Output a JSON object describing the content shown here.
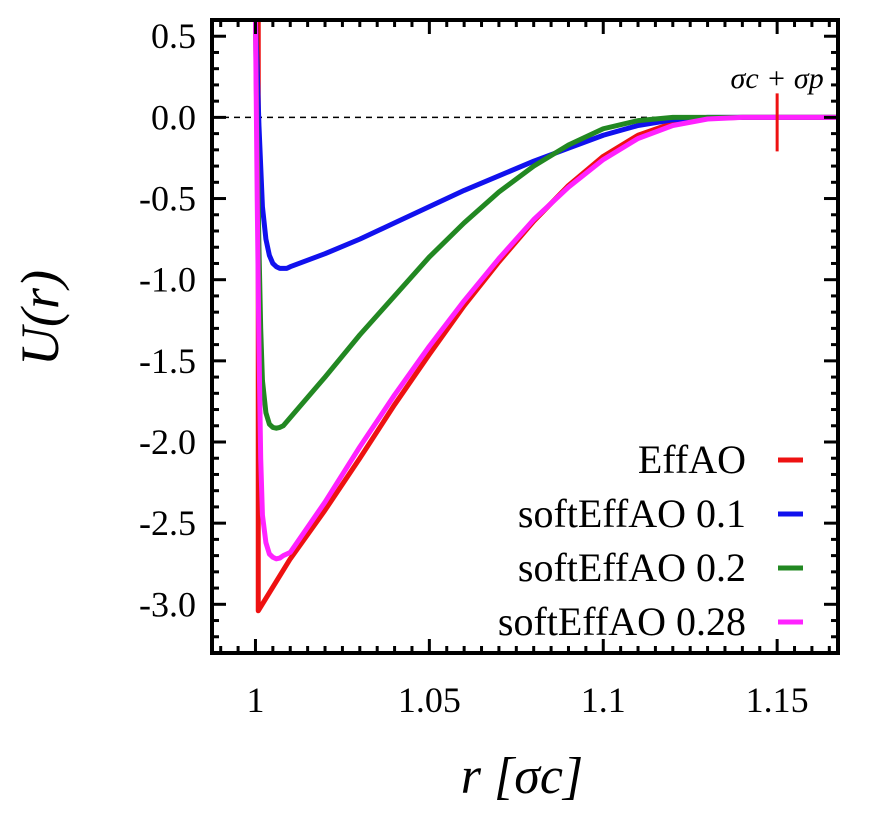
{
  "chart_data": {
    "type": "line",
    "title": "",
    "xlabel": "r [σc]",
    "ylabel": "U(r)",
    "xlim": [
      0.9875,
      1.1675
    ],
    "ylim": [
      -3.3,
      0.6
    ],
    "xticks": [
      {
        "value": 1.0,
        "label": "1"
      },
      {
        "value": 1.05,
        "label": "1.05"
      },
      {
        "value": 1.1,
        "label": "1.1"
      },
      {
        "value": 1.15,
        "label": "1.15"
      }
    ],
    "yticks": [
      {
        "value": 0.5,
        "label": "0.5"
      },
      {
        "value": 0.0,
        "label": "0.0"
      },
      {
        "value": -0.5,
        "label": "-0.5"
      },
      {
        "value": -1.0,
        "label": "-1.0"
      },
      {
        "value": -1.5,
        "label": "-1.5"
      },
      {
        "value": -2.0,
        "label": "-2.0"
      },
      {
        "value": -2.5,
        "label": "-2.5"
      },
      {
        "value": -3.0,
        "label": "-3.0"
      }
    ],
    "legend_position": "bottom-right",
    "annotations": [
      {
        "text": "σc + σp",
        "x": 1.15,
        "y": 0.0
      }
    ],
    "reference_line": {
      "y": 0.0,
      "style": "dashed"
    },
    "series": [
      {
        "name": "EffAO",
        "color": "#ee1111",
        "x": [
          0.9995,
          1.0008,
          1.0008,
          1.01,
          1.02,
          1.03,
          1.04,
          1.05,
          1.06,
          1.07,
          1.08,
          1.09,
          1.1,
          1.11,
          1.12,
          1.13,
          1.14,
          1.15,
          1.1675
        ],
        "y": [
          0.6,
          0.6,
          -3.04,
          -2.72,
          -2.42,
          -2.1,
          -1.77,
          -1.46,
          -1.16,
          -0.89,
          -0.64,
          -0.42,
          -0.24,
          -0.11,
          -0.035,
          -0.005,
          0.0,
          0.0,
          0.0
        ]
      },
      {
        "name": "softEffAO 0.1",
        "color": "#1111ee",
        "x": [
          1.0,
          1.0005,
          1.001,
          1.0015,
          1.002,
          1.003,
          1.004,
          1.005,
          1.006,
          1.007,
          1.008,
          1.009,
          1.01,
          1.02,
          1.03,
          1.04,
          1.05,
          1.06,
          1.07,
          1.08,
          1.09,
          1.1,
          1.11,
          1.12,
          1.13,
          1.14,
          1.15,
          1.1675
        ],
        "y": [
          0.6,
          0.3,
          -0.05,
          -0.3,
          -0.55,
          -0.75,
          -0.85,
          -0.9,
          -0.92,
          -0.93,
          -0.93,
          -0.93,
          -0.92,
          -0.84,
          -0.75,
          -0.65,
          -0.55,
          -0.45,
          -0.36,
          -0.27,
          -0.19,
          -0.11,
          -0.05,
          -0.015,
          0.0,
          0.0,
          0.0,
          0.0
        ]
      },
      {
        "name": "softEffAO 0.2",
        "color": "#228822",
        "x": [
          1.0,
          1.0005,
          1.001,
          1.0015,
          1.002,
          1.003,
          1.004,
          1.005,
          1.006,
          1.007,
          1.008,
          1.01,
          1.02,
          1.03,
          1.04,
          1.05,
          1.06,
          1.07,
          1.08,
          1.09,
          1.1,
          1.11,
          1.12,
          1.13,
          1.14,
          1.15,
          1.1675
        ],
        "y": [
          0.6,
          -0.2,
          -0.8,
          -1.3,
          -1.62,
          -1.82,
          -1.89,
          -1.91,
          -1.915,
          -1.91,
          -1.9,
          -1.85,
          -1.6,
          -1.34,
          -1.1,
          -0.86,
          -0.65,
          -0.46,
          -0.3,
          -0.17,
          -0.07,
          -0.02,
          0.0,
          0.0,
          0.0,
          0.0,
          0.0
        ]
      },
      {
        "name": "softEffAO 0.28",
        "color": "#ff22ff",
        "x": [
          1.0,
          1.0005,
          1.001,
          1.0015,
          1.002,
          1.003,
          1.004,
          1.005,
          1.006,
          1.007,
          1.008,
          1.009,
          1.01,
          1.02,
          1.03,
          1.04,
          1.05,
          1.06,
          1.07,
          1.08,
          1.09,
          1.1,
          1.11,
          1.12,
          1.13,
          1.14,
          1.15,
          1.1675
        ],
        "y": [
          0.6,
          -0.5,
          -1.4,
          -2.1,
          -2.45,
          -2.62,
          -2.69,
          -2.71,
          -2.72,
          -2.715,
          -2.7,
          -2.69,
          -2.68,
          -2.37,
          -2.03,
          -1.71,
          -1.41,
          -1.13,
          -0.87,
          -0.63,
          -0.43,
          -0.26,
          -0.13,
          -0.05,
          -0.01,
          0.0,
          0.0,
          0.0
        ]
      }
    ]
  }
}
